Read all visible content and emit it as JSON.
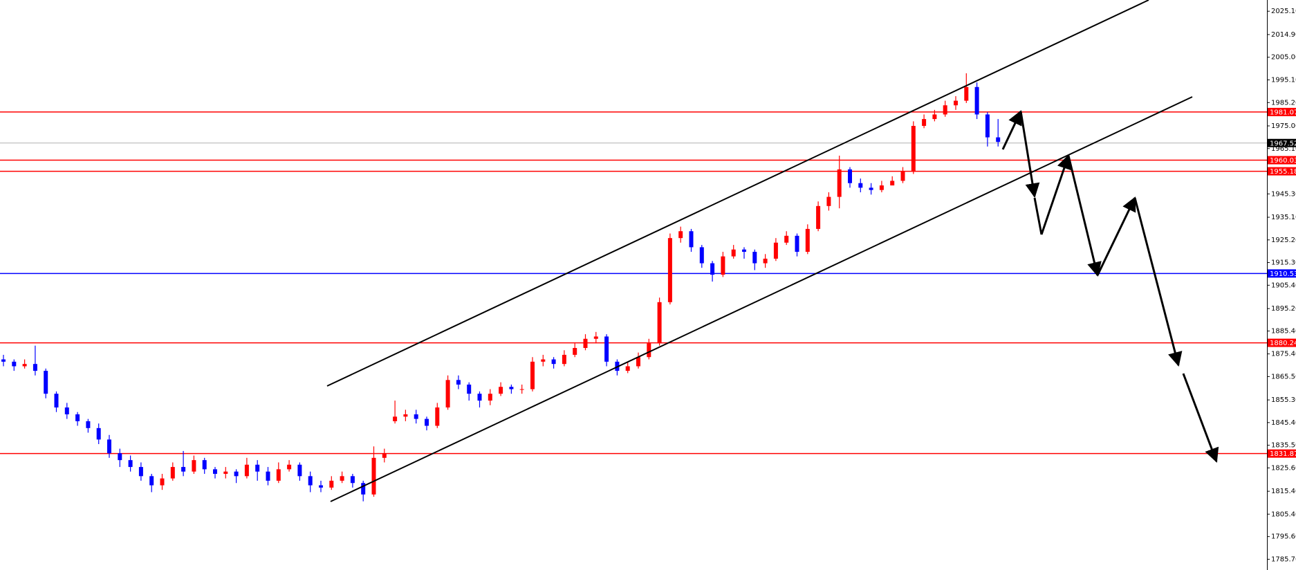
{
  "chart_data": {
    "type": "candlestick",
    "up_color": "#ff0000",
    "down_color": "#0000ff",
    "candles": [
      [
        1873,
        1875,
        1870,
        1872
      ],
      [
        1872,
        1873,
        1868,
        1870
      ],
      [
        1870,
        1873,
        1869,
        1871
      ],
      [
        1871,
        1879,
        1866,
        1868
      ],
      [
        1868,
        1869,
        1856,
        1858
      ],
      [
        1858,
        1859,
        1850,
        1852
      ],
      [
        1852,
        1854,
        1847,
        1849
      ],
      [
        1849,
        1850,
        1844,
        1846
      ],
      [
        1846,
        1847,
        1841,
        1843
      ],
      [
        1843,
        1845,
        1836,
        1838
      ],
      [
        1838,
        1840,
        1830,
        1832
      ],
      [
        1832,
        1834,
        1826,
        1829
      ],
      [
        1829,
        1831,
        1824,
        1826
      ],
      [
        1826,
        1828,
        1820,
        1822
      ],
      [
        1822,
        1823,
        1815,
        1818
      ],
      [
        1818,
        1823,
        1816,
        1821
      ],
      [
        1821,
        1828,
        1820,
        1826
      ],
      [
        1826,
        1833,
        1822,
        1824
      ],
      [
        1824,
        1831,
        1823,
        1829
      ],
      [
        1829,
        1830,
        1823,
        1825
      ],
      [
        1825,
        1826,
        1821,
        1823
      ],
      [
        1823,
        1826,
        1821,
        1824
      ],
      [
        1824,
        1825,
        1819,
        1822
      ],
      [
        1822,
        1830,
        1821,
        1827
      ],
      [
        1827,
        1829,
        1820,
        1824
      ],
      [
        1824,
        1826,
        1818,
        1820
      ],
      [
        1820,
        1828,
        1819,
        1825
      ],
      [
        1825,
        1829,
        1824,
        1827
      ],
      [
        1827,
        1828,
        1820,
        1822
      ],
      [
        1822,
        1824,
        1815,
        1818
      ],
      [
        1818,
        1820,
        1815,
        1817
      ],
      [
        1817,
        1822,
        1816,
        1820
      ],
      [
        1820,
        1824,
        1819,
        1822
      ],
      [
        1822,
        1823,
        1817,
        1819
      ],
      [
        1819,
        1820,
        1811,
        1814
      ],
      [
        1814,
        1835,
        1813,
        1830
      ],
      [
        1830,
        1834,
        1828,
        1832
      ],
      [
        1846,
        1855,
        1845,
        1848
      ],
      [
        1848,
        1851,
        1846,
        1849
      ],
      [
        1849,
        1851,
        1845,
        1847
      ],
      [
        1847,
        1848,
        1842,
        1844
      ],
      [
        1844,
        1854,
        1843,
        1852
      ],
      [
        1852,
        1866,
        1851,
        1864
      ],
      [
        1864,
        1866,
        1860,
        1862
      ],
      [
        1862,
        1863,
        1855,
        1858
      ],
      [
        1858,
        1859,
        1852,
        1855
      ],
      [
        1855,
        1860,
        1853,
        1858
      ],
      [
        1858,
        1863,
        1857,
        1861
      ],
      [
        1861,
        1862,
        1858,
        1860
      ],
      [
        1860,
        1862,
        1858,
        1860
      ],
      [
        1860,
        1874,
        1859,
        1872
      ],
      [
        1872,
        1875,
        1870,
        1873
      ],
      [
        1873,
        1874,
        1869,
        1871
      ],
      [
        1871,
        1877,
        1870,
        1875
      ],
      [
        1875,
        1880,
        1874,
        1878
      ],
      [
        1878,
        1884,
        1877,
        1882
      ],
      [
        1882,
        1885,
        1880,
        1883
      ],
      [
        1883,
        1884,
        1870,
        1872
      ],
      [
        1872,
        1873,
        1866,
        1868
      ],
      [
        1868,
        1872,
        1867,
        1870
      ],
      [
        1870,
        1876,
        1869,
        1874
      ],
      [
        1874,
        1882,
        1873,
        1880
      ],
      [
        1880,
        1900,
        1879,
        1898
      ],
      [
        1898,
        1928,
        1897,
        1926
      ],
      [
        1926,
        1931,
        1924,
        1929
      ],
      [
        1929,
        1930,
        1920,
        1922
      ],
      [
        1922,
        1923,
        1913,
        1915
      ],
      [
        1915,
        1916,
        1907,
        1910
      ],
      [
        1910,
        1920,
        1909,
        1918
      ],
      [
        1918,
        1923,
        1917,
        1921
      ],
      [
        1921,
        1922,
        1917,
        1920
      ],
      [
        1920,
        1921,
        1912,
        1915
      ],
      [
        1915,
        1919,
        1913,
        1917
      ],
      [
        1917,
        1926,
        1916,
        1924
      ],
      [
        1924,
        1929,
        1923,
        1927
      ],
      [
        1927,
        1928,
        1918,
        1920
      ],
      [
        1920,
        1932,
        1919,
        1930
      ],
      [
        1930,
        1942,
        1929,
        1940
      ],
      [
        1940,
        1946,
        1938,
        1944
      ],
      [
        1944,
        1962,
        1939,
        1956
      ],
      [
        1956,
        1957,
        1948,
        1950
      ],
      [
        1950,
        1952,
        1946,
        1948
      ],
      [
        1948,
        1950,
        1945,
        1947
      ],
      [
        1947,
        1951,
        1946,
        1949
      ],
      [
        1949,
        1953,
        1949,
        1951
      ],
      [
        1951,
        1957,
        1950,
        1955
      ],
      [
        1955,
        1977,
        1954,
        1975
      ],
      [
        1975,
        1980,
        1974,
        1978
      ],
      [
        1978,
        1982,
        1977,
        1980
      ],
      [
        1980,
        1986,
        1979,
        1984
      ],
      [
        1984,
        1988,
        1982,
        1986
      ],
      [
        1986,
        1998,
        1985,
        1992
      ],
      [
        1992,
        1994,
        1978,
        1980
      ],
      [
        1980,
        1981,
        1966,
        1970
      ],
      [
        1970,
        1978,
        1966,
        1968
      ]
    ],
    "ylim": [
      1781,
      2030
    ],
    "yticks": [
      {
        "value": 1785.7,
        "label": "1785.70"
      },
      {
        "value": 1795.6,
        "label": "1795.60"
      },
      {
        "value": 1805.4,
        "label": "1805.40"
      },
      {
        "value": 1815.4,
        "label": "1815.40"
      },
      {
        "value": 1825.6,
        "label": "1825.60"
      },
      {
        "value": 1835.5,
        "label": "1835.50"
      },
      {
        "value": 1845.4,
        "label": "1845.40"
      },
      {
        "value": 1855.3,
        "label": "1855.30"
      },
      {
        "value": 1865.5,
        "label": "1865.50"
      },
      {
        "value": 1875.4,
        "label": "1875.40"
      },
      {
        "value": 1885.4,
        "label": "1885.40"
      },
      {
        "value": 1895.2,
        "label": "1895.20"
      },
      {
        "value": 1905.4,
        "label": "1905.40"
      },
      {
        "value": 1915.3,
        "label": "1915.30"
      },
      {
        "value": 1925.2,
        "label": "1925.20"
      },
      {
        "value": 1935.1,
        "label": "1935.10"
      },
      {
        "value": 1945.3,
        "label": "1945.30"
      },
      {
        "value": 1965.1,
        "label": "1965.10"
      },
      {
        "value": 1975,
        "label": "1975.00"
      },
      {
        "value": 1985.2,
        "label": "1985.20"
      },
      {
        "value": 1995.1,
        "label": "1995.10"
      },
      {
        "value": 2005,
        "label": "2005.00"
      },
      {
        "value": 2014.9,
        "label": "2014.90"
      },
      {
        "value": 2025.1,
        "label": "2025.10"
      }
    ],
    "levels": [
      {
        "value": 1981.07,
        "color": "#ff0000"
      },
      {
        "value": 1960.03,
        "color": "#ff0000"
      },
      {
        "value": 1955.18,
        "color": "#ff0000"
      },
      {
        "value": 1910.53,
        "color": "#0000ff"
      },
      {
        "value": 1880.24,
        "color": "#ff0000"
      },
      {
        "value": 1831.87,
        "color": "#ff0000"
      }
    ],
    "last_price": 1967.52
  }
}
